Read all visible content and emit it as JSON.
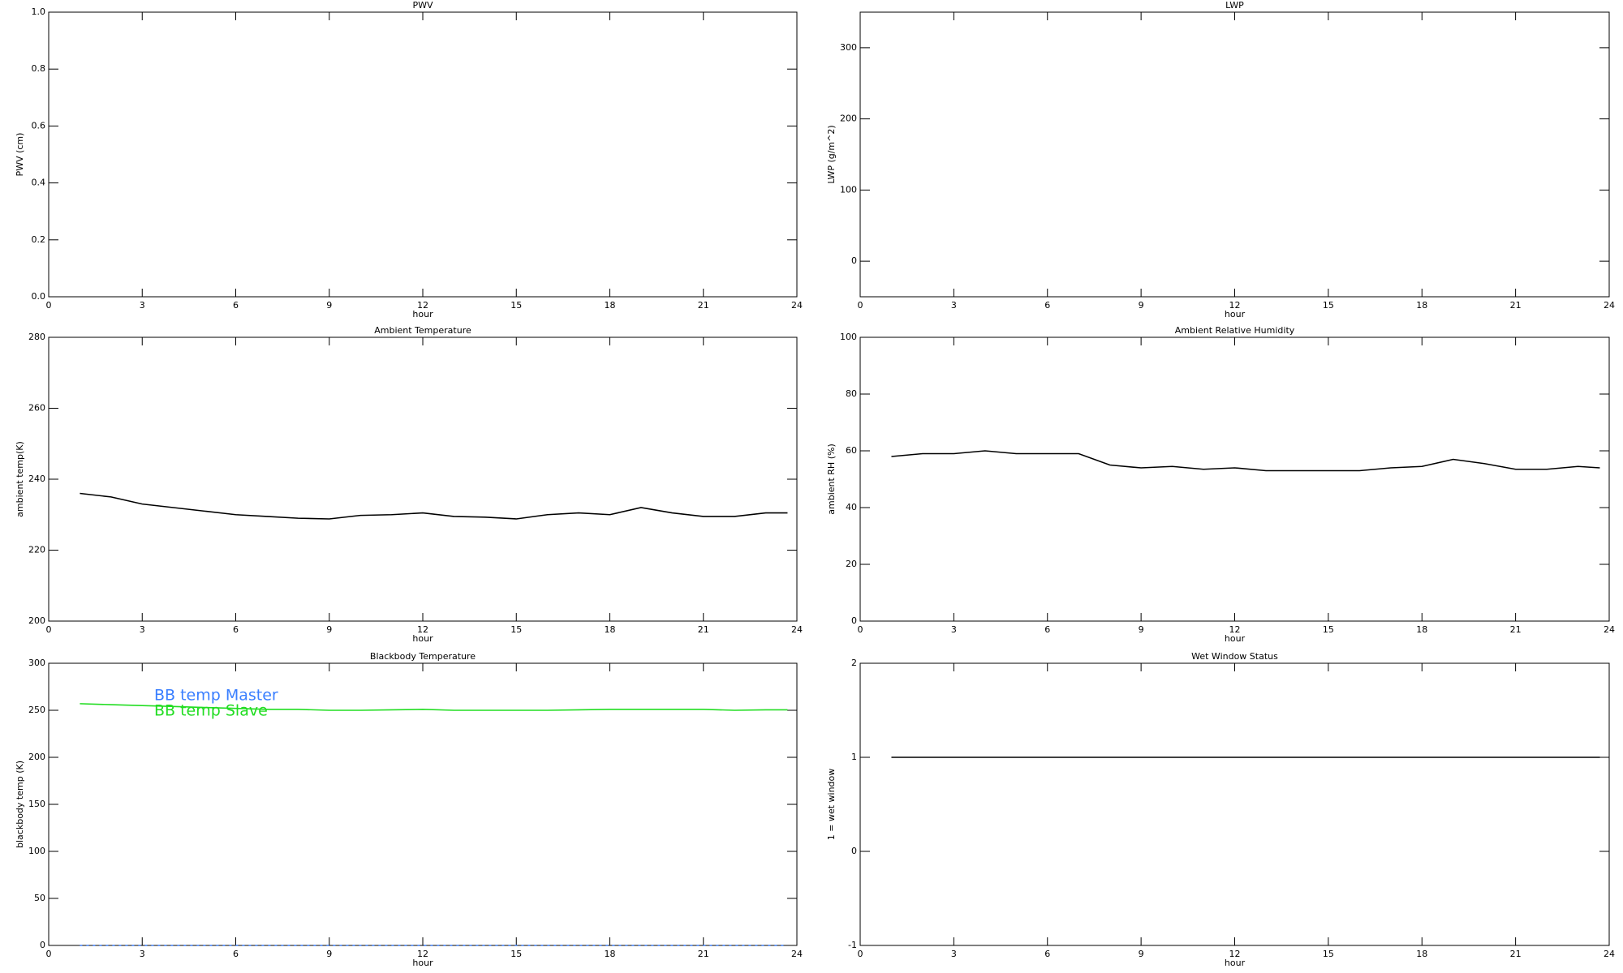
{
  "chart_data": [
    {
      "type": "line",
      "title": "PWV",
      "xlabel": "hour",
      "ylabel": "PWV (cm)",
      "xlim": [
        0,
        24
      ],
      "xticks": [
        0,
        3,
        6,
        9,
        12,
        15,
        18,
        21,
        24
      ],
      "ylim": [
        0,
        1
      ],
      "yticks": [
        {
          "value": 0,
          "label": "0.0"
        },
        0.2,
        0.4,
        0.6,
        0.8,
        {
          "value": 1,
          "label": "1.0"
        }
      ],
      "x": [],
      "series": []
    },
    {
      "type": "line",
      "title": "LWP",
      "xlabel": "hour",
      "ylabel": "LWP (g/m^2)",
      "xlim": [
        0,
        24
      ],
      "xticks": [
        0,
        3,
        6,
        9,
        12,
        15,
        18,
        21,
        24
      ],
      "ylim": [
        -50,
        350
      ],
      "yticks": [
        0,
        100,
        200,
        300
      ],
      "x": [],
      "series": []
    },
    {
      "type": "line",
      "title": "Ambient Temperature",
      "xlabel": "hour",
      "ylabel": "ambient temp(K)",
      "xlim": [
        0,
        24
      ],
      "xticks": [
        0,
        3,
        6,
        9,
        12,
        15,
        18,
        21,
        24
      ],
      "ylim": [
        200,
        280
      ],
      "yticks": [
        200,
        220,
        240,
        260,
        280
      ],
      "x": [
        1,
        2,
        3,
        4,
        5,
        6,
        7,
        8,
        9,
        10,
        11,
        12,
        13,
        14,
        15,
        16,
        17,
        18,
        19,
        20,
        21,
        22,
        23,
        23.7
      ],
      "series": [
        {
          "color": "#000000",
          "values": [
            236,
            235,
            233,
            232,
            231,
            230,
            229.5,
            229,
            228.8,
            229.8,
            230,
            230.5,
            229.5,
            229.3,
            228.8,
            230,
            230.5,
            230,
            232,
            230.5,
            229.5,
            229.5,
            230.5,
            230.5
          ]
        }
      ]
    },
    {
      "type": "line",
      "title": "Ambient Relative Humidity",
      "xlabel": "hour",
      "ylabel": "ambient RH (%)",
      "xlim": [
        0,
        24
      ],
      "xticks": [
        0,
        3,
        6,
        9,
        12,
        15,
        18,
        21,
        24
      ],
      "ylim": [
        0,
        100
      ],
      "yticks": [
        0,
        20,
        40,
        60,
        80,
        100
      ],
      "x": [
        1,
        2,
        3,
        4,
        5,
        6,
        7,
        8,
        9,
        10,
        11,
        12,
        13,
        14,
        15,
        16,
        17,
        18,
        19,
        20,
        21,
        22,
        23,
        23.7
      ],
      "series": [
        {
          "color": "#000000",
          "values": [
            58,
            59,
            59,
            60,
            59,
            59,
            59,
            55,
            54,
            54.5,
            53.5,
            54,
            53,
            53,
            53,
            53,
            54,
            54.5,
            57,
            55.5,
            53.5,
            53.5,
            54.5,
            54
          ]
        }
      ]
    },
    {
      "type": "line",
      "title": "Blackbody Temperature",
      "xlabel": "hour",
      "ylabel": "blackbody temp (K)",
      "xlim": [
        0,
        24
      ],
      "xticks": [
        0,
        3,
        6,
        9,
        12,
        15,
        18,
        21,
        24
      ],
      "ylim": [
        0,
        300
      ],
      "yticks": [
        0,
        50,
        100,
        150,
        200,
        250,
        300
      ],
      "legend": "upper left",
      "x": [
        1,
        2,
        3,
        4,
        5,
        6,
        7,
        8,
        9,
        10,
        11,
        12,
        13,
        14,
        15,
        16,
        17,
        18,
        19,
        20,
        21,
        22,
        23,
        23.7
      ],
      "series": [
        {
          "name": "BB temp Master",
          "color": "#3a7fff",
          "values": [
            0,
            0,
            0,
            0,
            0,
            0,
            0,
            0,
            0,
            0,
            0,
            0,
            0,
            0,
            0,
            0,
            0,
            0,
            0,
            0,
            0,
            0,
            0,
            0
          ]
        },
        {
          "name": "BB temp Slave",
          "color": "#22dd22",
          "values": [
            257,
            256,
            255,
            254,
            253,
            252,
            251,
            251,
            250,
            250,
            250.5,
            251,
            250,
            250,
            250,
            250,
            250.5,
            251,
            251,
            251,
            251,
            250,
            250.5,
            250.5
          ]
        }
      ]
    },
    {
      "type": "line",
      "title": "Wet Window Status",
      "xlabel": "hour",
      "ylabel": "1 = wet window",
      "xlim": [
        0,
        24
      ],
      "xticks": [
        0,
        3,
        6,
        9,
        12,
        15,
        18,
        21,
        24
      ],
      "ylim": [
        -1,
        2
      ],
      "yticks": [
        -1,
        0,
        1,
        2
      ],
      "x": [
        1,
        2,
        3,
        4,
        5,
        6,
        7,
        8,
        9,
        10,
        11,
        12,
        13,
        14,
        15,
        16,
        17,
        18,
        19,
        20,
        21,
        22,
        23,
        23.7
      ],
      "series": [
        {
          "color": "#000000",
          "values": [
            1,
            1,
            1,
            1,
            1,
            1,
            1,
            1,
            1,
            1,
            1,
            1,
            1,
            1,
            1,
            1,
            1,
            1,
            1,
            1,
            1,
            1,
            1,
            1
          ]
        }
      ]
    }
  ]
}
